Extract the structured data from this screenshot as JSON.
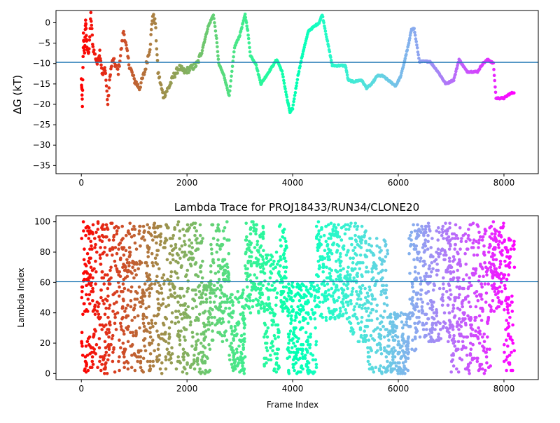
{
  "chart_data": [
    {
      "type": "scatter",
      "title": "",
      "xlabel": "",
      "ylabel": "ΔG (kT)",
      "xlim": [
        -480,
        8650
      ],
      "ylim": [
        -37,
        3
      ],
      "xticks": [
        0,
        2000,
        4000,
        6000,
        8000
      ],
      "yticks": [
        0,
        -5,
        -10,
        -15,
        -20,
        -25,
        -30,
        -35
      ],
      "hline": -9.7,
      "hline_color": "#1f77b4",
      "colormap": "rainbow (red at frame 0 to violet at last frame)",
      "trace": [
        [
          0,
          -14
        ],
        [
          20,
          -20
        ],
        [
          40,
          -3
        ],
        [
          60,
          -8
        ],
        [
          80,
          1
        ],
        [
          100,
          -5
        ],
        [
          140,
          -8
        ],
        [
          180,
          2
        ],
        [
          220,
          -6
        ],
        [
          300,
          -10
        ],
        [
          350,
          -7
        ],
        [
          400,
          -13
        ],
        [
          450,
          -11
        ],
        [
          500,
          -20
        ],
        [
          550,
          -12
        ],
        [
          600,
          -9
        ],
        [
          700,
          -12
        ],
        [
          800,
          -2
        ],
        [
          900,
          -10
        ],
        [
          1000,
          -14
        ],
        [
          1100,
          -16
        ],
        [
          1200,
          -12
        ],
        [
          1300,
          -6
        ],
        [
          1350,
          2
        ],
        [
          1400,
          0
        ],
        [
          1450,
          -12
        ],
        [
          1550,
          -18
        ],
        [
          1650,
          -16
        ],
        [
          1750,
          -13
        ],
        [
          1850,
          -11
        ],
        [
          1950,
          -12
        ],
        [
          2100,
          -11
        ],
        [
          2200,
          -10
        ],
        [
          2300,
          -6
        ],
        [
          2400,
          -1
        ],
        [
          2500,
          2
        ],
        [
          2560,
          -4
        ],
        [
          2600,
          -10
        ],
        [
          2700,
          -13
        ],
        [
          2800,
          -18
        ],
        [
          2900,
          -6
        ],
        [
          3000,
          -3
        ],
        [
          3100,
          2
        ],
        [
          3150,
          -2
        ],
        [
          3200,
          -8
        ],
        [
          3300,
          -10
        ],
        [
          3400,
          -15
        ],
        [
          3500,
          -13
        ],
        [
          3600,
          -11
        ],
        [
          3700,
          -9
        ],
        [
          3800,
          -12
        ],
        [
          3900,
          -19
        ],
        [
          3950,
          -22
        ],
        [
          4000,
          -21
        ],
        [
          4100,
          -13
        ],
        [
          4200,
          -7
        ],
        [
          4300,
          -2
        ],
        [
          4400,
          -1
        ],
        [
          4500,
          0
        ],
        [
          4560,
          2
        ],
        [
          4650,
          -4
        ],
        [
          4750,
          -10.5
        ],
        [
          5000,
          -10.5
        ],
        [
          5050,
          -14
        ],
        [
          5150,
          -14.5
        ],
        [
          5300,
          -14
        ],
        [
          5400,
          -16
        ],
        [
          5500,
          -15
        ],
        [
          5600,
          -13
        ],
        [
          5700,
          -13
        ],
        [
          5800,
          -14
        ],
        [
          5950,
          -15.5
        ],
        [
          6050,
          -13
        ],
        [
          6200,
          -5
        ],
        [
          6250,
          -1.5
        ],
        [
          6300,
          -1.5
        ],
        [
          6400,
          -9.5
        ],
        [
          6600,
          -9.5
        ],
        [
          6750,
          -12
        ],
        [
          6900,
          -15
        ],
        [
          7050,
          -14
        ],
        [
          7150,
          -9
        ],
        [
          7300,
          -12
        ],
        [
          7500,
          -12
        ],
        [
          7600,
          -10
        ],
        [
          7700,
          -9
        ],
        [
          7800,
          -10
        ],
        [
          7850,
          -18.5
        ],
        [
          8000,
          -18.5
        ],
        [
          8100,
          -17.5
        ],
        [
          8200,
          -17
        ]
      ]
    },
    {
      "type": "scatter",
      "title": "Lambda Trace for PROJ18433/RUN34/CLONE20",
      "xlabel": "Frame Index",
      "ylabel": "Lambda Index",
      "xlim": [
        -480,
        8650
      ],
      "ylim": [
        -4,
        104
      ],
      "xticks": [
        0,
        2000,
        4000,
        6000,
        8000
      ],
      "yticks": [
        0,
        20,
        40,
        60,
        80,
        100
      ],
      "hline": 60.7,
      "hline_color": "#1f77b4",
      "colormap": "rainbow (red at frame 0 to violet at last frame)",
      "bands": [
        [
          0,
          150,
          0,
          100
        ],
        [
          150,
          1000,
          0,
          100
        ],
        [
          1000,
          1350,
          0,
          100
        ],
        [
          1350,
          2300,
          0,
          100
        ],
        [
          2300,
          2450,
          0,
          60
        ],
        [
          2450,
          2800,
          20,
          100
        ],
        [
          2800,
          3100,
          0,
          55
        ],
        [
          3100,
          3450,
          40,
          100
        ],
        [
          3450,
          3750,
          0,
          80
        ],
        [
          3750,
          3900,
          40,
          100
        ],
        [
          3900,
          4450,
          0,
          60
        ],
        [
          4450,
          5000,
          35,
          100
        ],
        [
          5000,
          5400,
          20,
          100
        ],
        [
          5400,
          5800,
          0,
          90
        ],
        [
          5800,
          6200,
          0,
          40
        ],
        [
          6200,
          6500,
          15,
          100
        ],
        [
          6500,
          7000,
          20,
          100
        ],
        [
          7000,
          7500,
          0,
          100
        ],
        [
          7500,
          7750,
          0,
          100
        ],
        [
          7750,
          8000,
          40,
          100
        ],
        [
          8000,
          8200,
          0,
          90
        ]
      ],
      "total_frames": 8200
    }
  ]
}
